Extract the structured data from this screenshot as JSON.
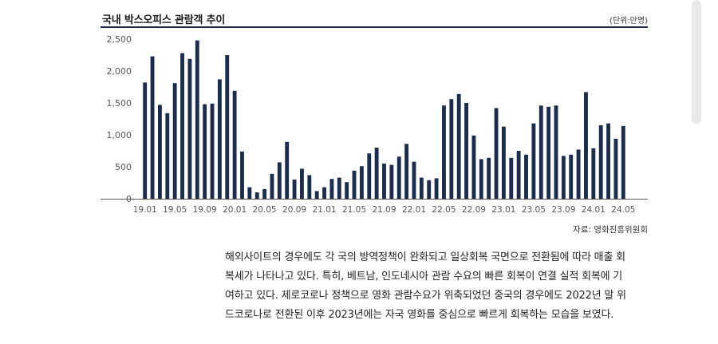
{
  "header": {
    "title": "국내 박스오피스 관람객 추이",
    "unit": "(단위:만명)"
  },
  "chart_data": {
    "type": "bar",
    "title": "국내 박스오피스 관람객 추이",
    "unit": "만명",
    "ylim": [
      0,
      2500
    ],
    "yticks": [
      0,
      500,
      1000,
      1500,
      2000,
      2500
    ],
    "ytick_labels": [
      "0",
      "500",
      "1,000",
      "1,500",
      "2,000",
      "2,500"
    ],
    "xtick_labels": [
      "19.01",
      "19.05",
      "19.09",
      "20.01",
      "20.05",
      "20.09",
      "21.01",
      "21.05",
      "21.09",
      "22.01",
      "22.05",
      "22.09",
      "23.01",
      "23.05",
      "23.09",
      "24.01",
      "24.05"
    ],
    "categories": [
      "19.01",
      "19.02",
      "19.03",
      "19.04",
      "19.05",
      "19.06",
      "19.07",
      "19.08",
      "19.09",
      "19.10",
      "19.11",
      "19.12",
      "20.01",
      "20.02",
      "20.03",
      "20.04",
      "20.05",
      "20.06",
      "20.07",
      "20.08",
      "20.09",
      "20.10",
      "20.11",
      "20.12",
      "21.01",
      "21.02",
      "21.03",
      "21.04",
      "21.05",
      "21.06",
      "21.07",
      "21.08",
      "21.09",
      "21.10",
      "21.11",
      "21.12",
      "22.01",
      "22.02",
      "22.03",
      "22.04",
      "22.05",
      "22.06",
      "22.07",
      "22.08",
      "22.09",
      "22.10",
      "22.11",
      "22.12",
      "23.01",
      "23.02",
      "23.03",
      "23.04",
      "23.05",
      "23.06",
      "23.07",
      "23.08",
      "23.09",
      "23.10",
      "23.11",
      "23.12",
      "24.01",
      "24.02",
      "24.03",
      "24.04",
      "24.05"
    ],
    "values": [
      1820,
      2230,
      1470,
      1340,
      1810,
      2280,
      2190,
      2480,
      1480,
      1490,
      1870,
      2250,
      1690,
      740,
      180,
      100,
      150,
      390,
      570,
      890,
      300,
      470,
      370,
      120,
      180,
      310,
      330,
      260,
      440,
      510,
      710,
      800,
      550,
      530,
      660,
      860,
      580,
      330,
      290,
      320,
      1460,
      1560,
      1640,
      1500,
      990,
      620,
      640,
      1420,
      1130,
      640,
      750,
      690,
      1180,
      1460,
      1440,
      1460,
      670,
      690,
      770,
      1670,
      790,
      1150,
      1180,
      940,
      1140
    ],
    "grid": false,
    "legend": "none",
    "bar_color": "#1b2d4f"
  },
  "footer": {
    "source": "자료: 영화진흥위원회"
  },
  "paragraph": {
    "lines": [
      "해외사이트의 경우에도 각 국의 방역정책이 완화되고 일상회복 국면으로 전환됨에 따라 매출 회",
      "복세가 나타나고 있다. 특히, 베트남, 인도네시아 관람 수요의 빠른 회복이 연결 실적 회복에 기",
      "여하고 있다. 제로코로나 정책으로 영화 관람수요가 위축되었던 중국의 경우에도 2022년 말 위",
      "드코로나로 전환된 이후 2023년에는 자국 영화를 중심으로 빠르게 회복하는 모습을 보였다."
    ]
  }
}
